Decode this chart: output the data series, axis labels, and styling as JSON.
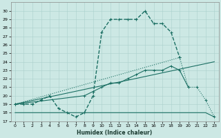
{
  "xlabel": "Humidex (Indice chaleur)",
  "bg_color": "#cce8e4",
  "grid_color": "#aad0cc",
  "line_color": "#1a6e62",
  "ylim": [
    17,
    31
  ],
  "xlim": [
    -0.5,
    23.5
  ],
  "yticks": [
    17,
    18,
    19,
    20,
    21,
    22,
    23,
    24,
    25,
    26,
    27,
    28,
    29,
    30
  ],
  "xticks": [
    0,
    1,
    2,
    3,
    4,
    5,
    6,
    7,
    8,
    9,
    10,
    11,
    12,
    13,
    14,
    15,
    16,
    17,
    18,
    19,
    20,
    21,
    22,
    23
  ],
  "x": [
    0,
    1,
    2,
    3,
    4,
    5,
    6,
    7,
    8,
    9,
    10,
    11,
    12,
    13,
    14,
    15,
    16,
    17,
    18,
    19,
    20,
    21,
    22,
    23
  ],
  "line_main": [
    19,
    19,
    19,
    19.5,
    20,
    18.5,
    18,
    17.5,
    18,
    20,
    27.5,
    29,
    29,
    29,
    29,
    30,
    28.5,
    28.5,
    27.5,
    24.5,
    null,
    null,
    null,
    null
  ],
  "line_diag1": [
    19,
    null,
    null,
    null,
    null,
    null,
    null,
    null,
    null,
    null,
    null,
    null,
    null,
    null,
    null,
    null,
    null,
    null,
    null,
    24.5,
    21,
    21,
    19.5,
    17.5
  ],
  "line_diag2": [
    19,
    null,
    null,
    null,
    null,
    null,
    null,
    null,
    null,
    null,
    null,
    null,
    null,
    null,
    null,
    null,
    null,
    null,
    null,
    null,
    null,
    null,
    null,
    24
  ],
  "line_flat": [
    18,
    18,
    18,
    18,
    18,
    18,
    18,
    18,
    18,
    18,
    18,
    18,
    18,
    18,
    18,
    18,
    18,
    18,
    18,
    18,
    18,
    18,
    18,
    17.5
  ],
  "line_mid": [
    19,
    null,
    null,
    null,
    null,
    null,
    null,
    null,
    20,
    20.5,
    21,
    21.5,
    21.5,
    22,
    22.5,
    23,
    23,
    23,
    23.5,
    23,
    21,
    null,
    null,
    null
  ]
}
